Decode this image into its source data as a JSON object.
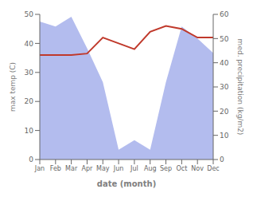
{
  "chart_data": {
    "type": "line",
    "x_label": "date (month)",
    "y_label": "max temp (C)",
    "y2_label": "med. precipitation (kg/m2)",
    "categories": [
      "Jan",
      "Feb",
      "Mar",
      "Apr",
      "May",
      "Jun",
      "Jul",
      "Aug",
      "Sep",
      "Oct",
      "Nov",
      "Dec"
    ],
    "series": [
      {
        "type": "area",
        "color": "#b3bcee",
        "axis": "y2",
        "values": [
          57,
          55,
          59,
          46,
          32,
          4,
          8,
          4,
          32,
          55,
          50,
          44
        ]
      },
      {
        "type": "line",
        "color": "#c0392b",
        "values": [
          36,
          36,
          36,
          36.5,
          42,
          40,
          38,
          44,
          46,
          45,
          42,
          42
        ]
      }
    ],
    "ylim": [
      0,
      50
    ],
    "yticks": [
      0,
      10,
      20,
      30,
      40,
      50
    ],
    "y2lim": [
      0,
      60
    ],
    "y2ticks": [
      0,
      10,
      20,
      30,
      40,
      50,
      60
    ],
    "grid": false
  }
}
